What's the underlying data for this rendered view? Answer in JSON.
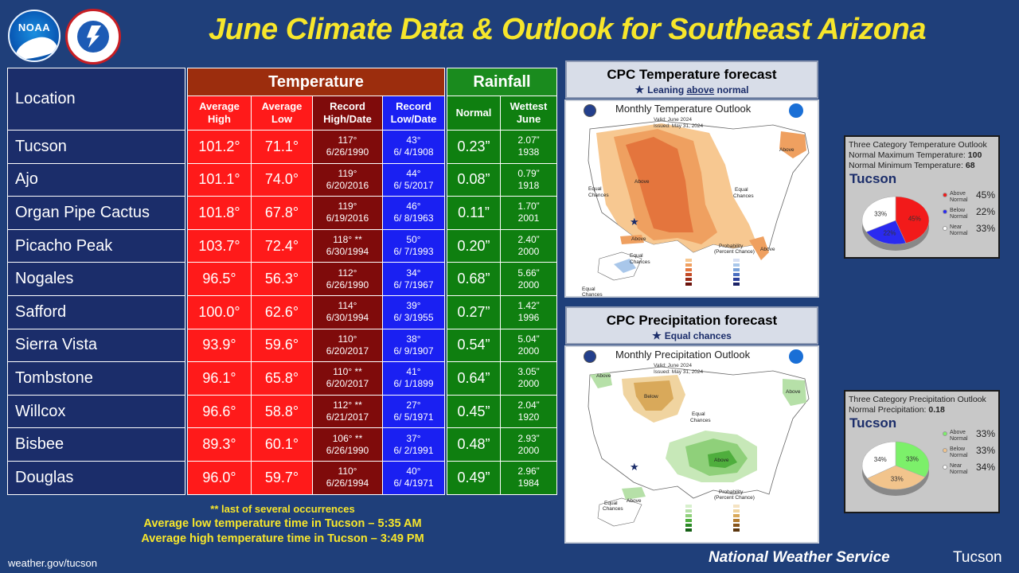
{
  "title": "June Climate Data & Outlook for Southeast Arizona",
  "logos": {
    "noaa": "NOAA",
    "nws_ring": "NATIONAL WEATHER SERVICE"
  },
  "table": {
    "location_header": "Location",
    "temperature_header": "Temperature",
    "rainfall_header": "Rainfall",
    "col_avg_high": "Average\nHigh",
    "col_avg_low": "Average\nLow",
    "col_record_high": "Record\nHigh/Date",
    "col_record_low": "Record\nLow/Date",
    "col_normal": "Normal",
    "col_wettest": "Wettest\nJune",
    "rows": [
      {
        "location": "Tucson",
        "avg_high": "101.2°",
        "avg_low": "71.1°",
        "rec_high": "117°",
        "rec_high_date": "6/26/1990",
        "rec_low": "43°",
        "rec_low_date": "6/ 4/1908",
        "normal": "0.23”",
        "wettest": "2.07”",
        "wettest_year": "1938"
      },
      {
        "location": "Ajo",
        "avg_high": "101.1°",
        "avg_low": "74.0°",
        "rec_high": "119°",
        "rec_high_date": "6/20/2016",
        "rec_low": "44°",
        "rec_low_date": "6/ 5/2017",
        "normal": "0.08”",
        "wettest": "0.79”",
        "wettest_year": "1918"
      },
      {
        "location": "Organ Pipe Cactus",
        "avg_high": "101.8°",
        "avg_low": "67.8°",
        "rec_high": "119°",
        "rec_high_date": "6/19/2016",
        "rec_low": "46°",
        "rec_low_date": "6/ 8/1963",
        "normal": "0.11”",
        "wettest": "1.70”",
        "wettest_year": "2001"
      },
      {
        "location": "Picacho Peak",
        "avg_high": "103.7°",
        "avg_low": "72.4°",
        "rec_high": "118° **",
        "rec_high_date": "6/30/1994",
        "rec_low": "50°",
        "rec_low_date": "6/ 7/1993",
        "normal": "0.20”",
        "wettest": "2.40”",
        "wettest_year": "2000"
      },
      {
        "location": "Nogales",
        "avg_high": "96.5°",
        "avg_low": "56.3°",
        "rec_high": "112°",
        "rec_high_date": "6/26/1990",
        "rec_low": "34°",
        "rec_low_date": "6/ 7/1967",
        "normal": "0.68”",
        "wettest": "5.66”",
        "wettest_year": "2000"
      },
      {
        "location": "Safford",
        "avg_high": "100.0°",
        "avg_low": "62.6°",
        "rec_high": "114°",
        "rec_high_date": "6/30/1994",
        "rec_low": "39°",
        "rec_low_date": "6/ 3/1955",
        "normal": "0.27”",
        "wettest": "1.42”",
        "wettest_year": "1996"
      },
      {
        "location": "Sierra Vista",
        "avg_high": "93.9°",
        "avg_low": "59.6°",
        "rec_high": "110°",
        "rec_high_date": "6/20/2017",
        "rec_low": "38°",
        "rec_low_date": "6/ 9/1907",
        "normal": "0.54”",
        "wettest": "5.04”",
        "wettest_year": "2000"
      },
      {
        "location": "Tombstone",
        "avg_high": "96.1°",
        "avg_low": "65.8°",
        "rec_high": "110° **",
        "rec_high_date": "6/20/2017",
        "rec_low": "41°",
        "rec_low_date": "6/ 1/1899",
        "normal": "0.64”",
        "wettest": "3.05”",
        "wettest_year": "2000"
      },
      {
        "location": "Willcox",
        "avg_high": "96.6°",
        "avg_low": "58.8°",
        "rec_high": "112° **",
        "rec_high_date": "6/21/2017",
        "rec_low": "27°",
        "rec_low_date": "6/ 5/1971",
        "normal": "0.45”",
        "wettest": "2.04”",
        "wettest_year": "1920"
      },
      {
        "location": "Bisbee",
        "avg_high": "89.3°",
        "avg_low": "60.1°",
        "rec_high": "106° **",
        "rec_high_date": "6/26/1990",
        "rec_low": "37°",
        "rec_low_date": "6/ 2/1991",
        "normal": "0.48”",
        "wettest": "2.93”",
        "wettest_year": "2000"
      },
      {
        "location": "Douglas",
        "avg_high": "96.0°",
        "avg_low": "59.7°",
        "rec_high": "110°",
        "rec_high_date": "6/26/1994",
        "rec_low": "40°",
        "rec_low_date": "6/ 4/1971",
        "normal": "0.49”",
        "wettest": "2.96”",
        "wettest_year": "1984"
      }
    ]
  },
  "notes": {
    "footnote": "** last of several occurrences",
    "low_time": "Average low temperature time in Tucson – 5:35 AM",
    "high_time": "Average high temperature time in Tucson – 3:49 PM"
  },
  "footer": {
    "website": "weather.gov/tucson",
    "agency": "National Weather Service",
    "office": "Tucson"
  },
  "temp_forecast": {
    "title": "CPC Temperature forecast",
    "subtitle_pre": "Leaning ",
    "subtitle_em": "above",
    "subtitle_post": " normal",
    "map_title": "Monthly Temperature Outlook",
    "valid": "Valid:  June 2024",
    "issued": "Issued:  May 31, 2024",
    "labels": {
      "above": "Above",
      "equal": "Equal\nChances",
      "prob": "Probability\n(Percent Chance)"
    }
  },
  "precip_forecast": {
    "title": "CPC Precipitation forecast",
    "subtitle": "Equal chances",
    "map_title": "Monthly Precipitation Outlook",
    "valid": "Valid:  June 2024",
    "issued": "Issued:  May 31, 2024",
    "labels": {
      "above": "Above",
      "below": "Below",
      "equal": "Equal\nChances",
      "prob": "Probability\n(Percent Chance)"
    }
  },
  "temp_category": {
    "header": "Three Category Temperature Outlook",
    "max_label": "Normal Maximum Temperature: ",
    "max_value": "100",
    "min_label": "Normal Minimum Temperature: ",
    "min_value": "68",
    "city": "Tucson",
    "legend": [
      {
        "label": "Above\nNormal",
        "pct": "45%",
        "color": "#f21a1a"
      },
      {
        "label": "Below\nNormal",
        "pct": "22%",
        "color": "#2a2af0"
      },
      {
        "label": "Near\nNormal",
        "pct": "33%",
        "color": "#ffffff"
      }
    ],
    "slices": [
      45,
      22,
      33
    ],
    "slice_labels": [
      "45%",
      "22%",
      "33%"
    ]
  },
  "precip_category": {
    "header": "Three Category Precipitation Outlook",
    "normal_label": "Normal Precipitation: ",
    "normal_value": "0.18",
    "city": "Tucson",
    "legend": [
      {
        "label": "Above\nNormal",
        "pct": "33%",
        "color": "#7cf06a"
      },
      {
        "label": "Below\nNormal",
        "pct": "33%",
        "color": "#f2c48c"
      },
      {
        "label": "Near\nNormal",
        "pct": "34%",
        "color": "#ffffff"
      }
    ],
    "slices": [
      33,
      33,
      34
    ],
    "slice_labels": [
      "33%",
      "33%",
      "34%"
    ]
  },
  "colors": {
    "background": "#1f3f7a",
    "title": "#f7e62b",
    "location_col": "#1b2d6a",
    "avg_red": "#ff1a1a",
    "record_high": "#7f0b0b",
    "record_low": "#1a20f2",
    "rain_green": "#0f7f10"
  }
}
